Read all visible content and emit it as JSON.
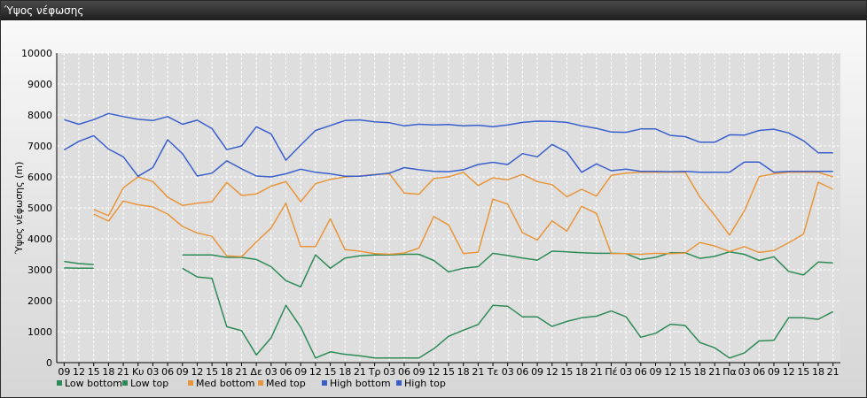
{
  "window": {
    "title": "Ύψος νέφωσης"
  },
  "chart_data": {
    "type": "line",
    "title": "",
    "ylabel": "Ύψος νέφωσης (m)",
    "ylim": [
      0,
      10000
    ],
    "yticks": [
      0,
      1000,
      2000,
      3000,
      4000,
      5000,
      6000,
      7000,
      8000,
      9000,
      10000
    ],
    "grid": true,
    "legend_position": "bottom-left",
    "x": [
      "09",
      "12",
      "15",
      "18",
      "21",
      "Κυ",
      "03",
      "06",
      "09",
      "12",
      "15",
      "18",
      "21",
      "Δε",
      "03",
      "06",
      "09",
      "12",
      "15",
      "18",
      "21",
      "Τρ",
      "03",
      "06",
      "09",
      "12",
      "15",
      "18",
      "21",
      "Τε",
      "03",
      "06",
      "09",
      "12",
      "15",
      "18",
      "21",
      "Πέ",
      "03",
      "06",
      "09",
      "12",
      "15",
      "18",
      "21",
      "Πα",
      "03",
      "06",
      "09",
      "12",
      "15",
      "18",
      "21"
    ],
    "series": [
      {
        "name": "Low bottom",
        "color": "#2e8b57",
        "values": [
          3060,
          3050,
          3050,
          null,
          null,
          null,
          null,
          null,
          3050,
          2770,
          2720,
          1160,
          1030,
          250,
          800,
          1850,
          1150,
          150,
          350,
          270,
          220,
          150,
          150,
          150,
          150,
          450,
          850,
          1050,
          1230,
          1850,
          1820,
          1480,
          1480,
          1170,
          1330,
          1450,
          1500,
          1670,
          1480,
          820,
          950,
          1240,
          1200,
          650,
          480,
          150,
          310,
          700,
          720,
          1450,
          1450,
          1400,
          1650
        ]
      },
      {
        "name": "Low top",
        "color": "#2e8b57",
        "values": [
          3270,
          3200,
          3170,
          null,
          null,
          null,
          null,
          null,
          3480,
          3480,
          3480,
          3400,
          3400,
          3330,
          3100,
          2650,
          2450,
          3480,
          3050,
          3380,
          3450,
          3480,
          3480,
          3500,
          3500,
          3300,
          2930,
          3050,
          3100,
          3530,
          3460,
          3380,
          3310,
          3600,
          3580,
          3550,
          3530,
          3530,
          3520,
          3330,
          3400,
          3550,
          3550,
          3370,
          3430,
          3580,
          3500,
          3300,
          3420,
          2950,
          2830,
          3250,
          3220
        ]
      },
      {
        "name": "Med bottom",
        "color": "#e8963c",
        "values": [
          null,
          null,
          4800,
          4570,
          5220,
          5100,
          5030,
          4800,
          4400,
          4190,
          4080,
          3450,
          3420,
          3900,
          4350,
          5150,
          3750,
          3750,
          4650,
          3650,
          3600,
          3520,
          3500,
          3540,
          3700,
          4720,
          4450,
          3520,
          3570,
          5280,
          5120,
          4200,
          3960,
          4580,
          4250,
          5050,
          4820,
          3520,
          3520,
          3500,
          3530,
          3520,
          3540,
          3880,
          3770,
          3590,
          3750,
          3560,
          3620,
          3870,
          4150,
          5830,
          5600
        ]
      },
      {
        "name": "Med top",
        "color": "#e8963c",
        "values": [
          null,
          null,
          4950,
          4750,
          5650,
          6000,
          5850,
          5350,
          5080,
          5150,
          5200,
          5820,
          5400,
          5450,
          5700,
          5850,
          5200,
          5780,
          5920,
          6000,
          6030,
          6080,
          6100,
          5480,
          5440,
          5950,
          6000,
          6150,
          5720,
          5970,
          5910,
          6080,
          5850,
          5750,
          5360,
          5600,
          5380,
          6050,
          6120,
          6150,
          6150,
          6150,
          6150,
          5350,
          4760,
          4120,
          4900,
          6010,
          6100,
          6150,
          6150,
          6150,
          6000
        ]
      },
      {
        "name": "High bottom",
        "color": "#3a5fcd",
        "values": [
          6870,
          7150,
          7330,
          6900,
          6650,
          6020,
          6300,
          7200,
          6750,
          6030,
          6120,
          6520,
          6260,
          6030,
          6000,
          6100,
          6250,
          6150,
          6100,
          6020,
          6020,
          6070,
          6120,
          6300,
          6230,
          6180,
          6170,
          6230,
          6400,
          6470,
          6400,
          6750,
          6650,
          7050,
          6800,
          6150,
          6420,
          6200,
          6250,
          6180,
          6180,
          6170,
          6180,
          6150,
          6150,
          6150,
          6480,
          6480,
          6150,
          6180,
          6180,
          6180,
          6180
        ]
      },
      {
        "name": "High top",
        "color": "#3a5fcd",
        "values": [
          7850,
          7700,
          7850,
          8050,
          7950,
          7860,
          7820,
          7950,
          7700,
          7830,
          7560,
          6880,
          7000,
          7620,
          7390,
          6540,
          7030,
          7500,
          7660,
          7820,
          7840,
          7780,
          7750,
          7650,
          7700,
          7680,
          7690,
          7650,
          7670,
          7620,
          7680,
          7760,
          7800,
          7790,
          7760,
          7650,
          7570,
          7450,
          7440,
          7550,
          7550,
          7340,
          7300,
          7120,
          7120,
          7360,
          7350,
          7500,
          7540,
          7420,
          7170,
          6780,
          6780
        ]
      }
    ]
  }
}
